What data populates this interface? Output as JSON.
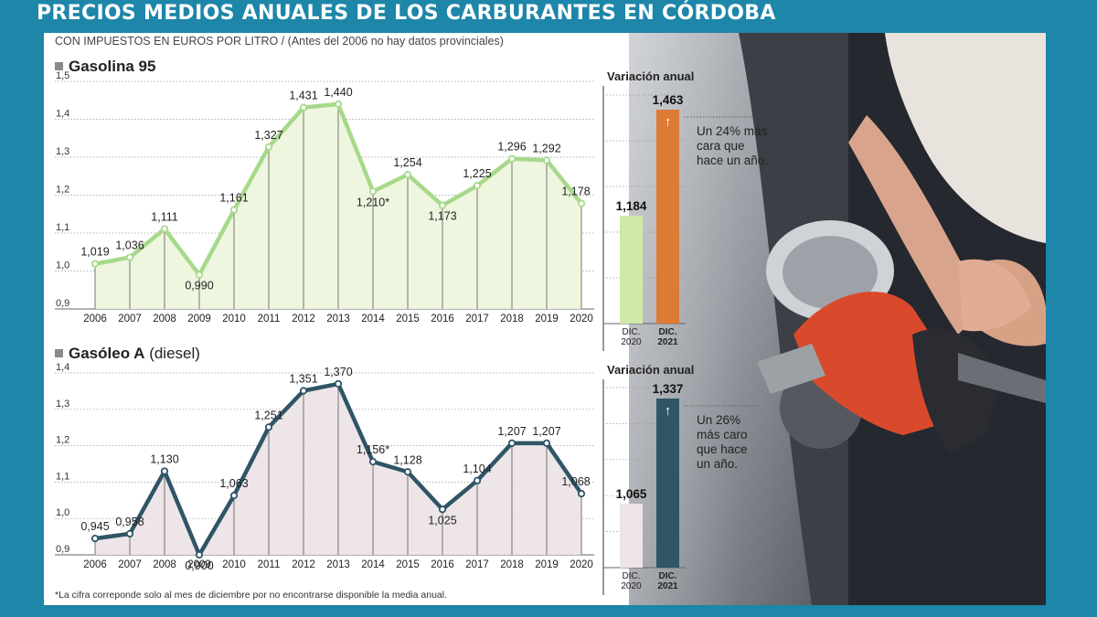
{
  "header": {
    "title": "PRECIOS MEDIOS ANUALES  DE LOS CARBURANTES EN CÓRDOBA",
    "subtitle": "CON IMPUESTOS EN EUROS POR LITRO / (Antes del 2006 no hay datos provinciales)"
  },
  "sections": {
    "gasolina_title": "Gasolina 95",
    "gasoleo_title": "Gasóleo A",
    "gasoleo_suffix": "(diesel)"
  },
  "footnote": "*La cifra correponde solo al mes de diciembre por no encontrarse disponible la media anual.",
  "colors": {
    "frame": "#1d86a9",
    "gasolina_line": "#a6d98a",
    "gasolina_fill": "#eef6de",
    "gasoleo_line": "#2f5566",
    "gasoleo_fill": "#ece4e6",
    "bar_2020_gasolina": "#cfe9a7",
    "bar_2021_gasolina": "#dd7a33",
    "bar_2020_gasoleo": "#ece4e6",
    "bar_2021_gasoleo": "#2f5566"
  },
  "chart_data": [
    {
      "type": "area",
      "name": "Gasolina 95",
      "x": [
        "2006",
        "2007",
        "2008",
        "2009",
        "2010",
        "2011",
        "2012",
        "2013",
        "2014",
        "2015",
        "2016",
        "2017",
        "2018",
        "2019",
        "2020"
      ],
      "values": [
        1.019,
        1.036,
        1.111,
        0.99,
        1.161,
        1.327,
        1.431,
        1.44,
        1.21,
        1.254,
        1.173,
        1.225,
        1.296,
        1.292,
        1.178
      ],
      "labels": [
        "1,019",
        "1,036",
        "1,111",
        "0,990",
        "1,161",
        "1,327",
        "1,431",
        "1,440",
        "1,210*",
        "1,254",
        "1,173",
        "1,225",
        "1,296",
        "1,292",
        "1,178"
      ],
      "yticks": [
        "0,9",
        "1,0",
        "1,1",
        "1,2",
        "1,3",
        "1,4",
        "1,5"
      ],
      "ylim": [
        0.9,
        1.5
      ],
      "grid": true
    },
    {
      "type": "bar",
      "name": "Gasolina 95 variación anual",
      "title": "Variación anual",
      "categories": [
        "DIC. 2020",
        "DIC. 2021"
      ],
      "category_lines": [
        [
          "DIC.",
          "2020"
        ],
        [
          "DIC.",
          "2021"
        ]
      ],
      "values": [
        1.184,
        1.463
      ],
      "labels": [
        "1,184",
        "1,463"
      ],
      "arrow": "↑",
      "annotation": [
        "Un 24% más",
        "cara que",
        "hace un año."
      ]
    },
    {
      "type": "area",
      "name": "Gasóleo A",
      "x": [
        "2006",
        "2007",
        "2008",
        "2009",
        "2010",
        "2011",
        "2012",
        "2013",
        "2014",
        "2015",
        "2016",
        "2017",
        "2018",
        "2019",
        "2020"
      ],
      "values": [
        0.945,
        0.958,
        1.13,
        0.9,
        1.063,
        1.251,
        1.351,
        1.37,
        1.156,
        1.128,
        1.025,
        1.104,
        1.207,
        1.207,
        1.068
      ],
      "labels": [
        "0,945",
        "0,958",
        "1,130",
        "0,900",
        "1,063",
        "1,251",
        "1,351",
        "1,370",
        "1,156*",
        "1,128",
        "1,025",
        "1,104",
        "1,207",
        "1,207",
        "1,068"
      ],
      "yticks": [
        "0,9",
        "1,0",
        "1,1",
        "1,2",
        "1,3",
        "1,4"
      ],
      "ylim": [
        0.9,
        1.4
      ],
      "grid": true
    },
    {
      "type": "bar",
      "name": "Gasóleo A variación anual",
      "title": "Variación anual",
      "categories": [
        "DIC. 2020",
        "DIC. 2021"
      ],
      "category_lines": [
        [
          "DIC.",
          "2020"
        ],
        [
          "DIC.",
          "2021"
        ]
      ],
      "values": [
        1.065,
        1.337
      ],
      "labels": [
        "1,065",
        "1,337"
      ],
      "arrow": "↑",
      "annotation": [
        "Un 26%",
        "más caro",
        "que hace",
        "un año."
      ]
    }
  ]
}
